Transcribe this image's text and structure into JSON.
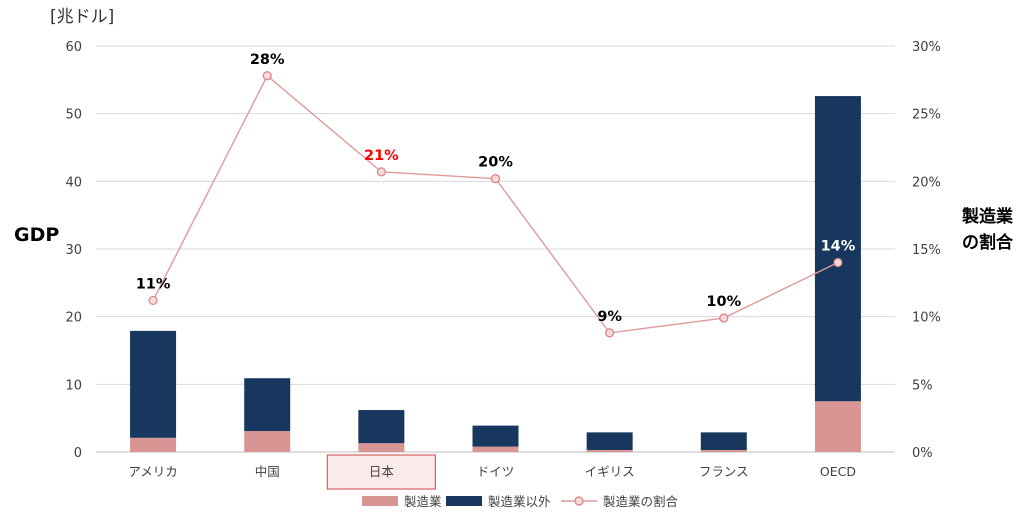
{
  "chart_data": {
    "type": "bar",
    "unit_label": "[兆ドル]",
    "ylabel": "GDP",
    "y2label_lines": [
      "製造業",
      "の割合"
    ],
    "categories": [
      "アメリカ",
      "中国",
      "日本",
      "ドイツ",
      "イギリス",
      "フランス",
      "OECD"
    ],
    "highlight_category": "日本",
    "ylim": [
      0,
      60
    ],
    "yticks": [
      0,
      10,
      20,
      30,
      40,
      50,
      60
    ],
    "y2lim": [
      0,
      30
    ],
    "y2ticks": [
      "0%",
      "5%",
      "10%",
      "15%",
      "20%",
      "25%",
      "30%"
    ],
    "stacked": true,
    "grid": true,
    "legend_position": "bottom",
    "series": [
      {
        "name": "製造業",
        "type": "bar",
        "color": "#d99594",
        "values": [
          2.1,
          3.1,
          1.3,
          0.8,
          0.3,
          0.3,
          7.5
        ]
      },
      {
        "name": "製造業以外",
        "type": "bar",
        "color": "#17375e",
        "values": [
          15.8,
          7.8,
          4.9,
          3.1,
          2.6,
          2.6,
          45.1
        ]
      },
      {
        "name": "製造業の割合",
        "type": "line",
        "axis": "right",
        "color": "#e09a9a",
        "values": [
          11.2,
          27.8,
          20.7,
          20.2,
          8.8,
          9.9,
          14.0
        ]
      }
    ],
    "point_labels": [
      "11%",
      "28%",
      "21%",
      "20%",
      "9%",
      "10%",
      "14%"
    ],
    "point_label_colors": [
      "#000000",
      "#000000",
      "#ff0000",
      "#000000",
      "#000000",
      "#000000",
      "#ffffff"
    ]
  }
}
